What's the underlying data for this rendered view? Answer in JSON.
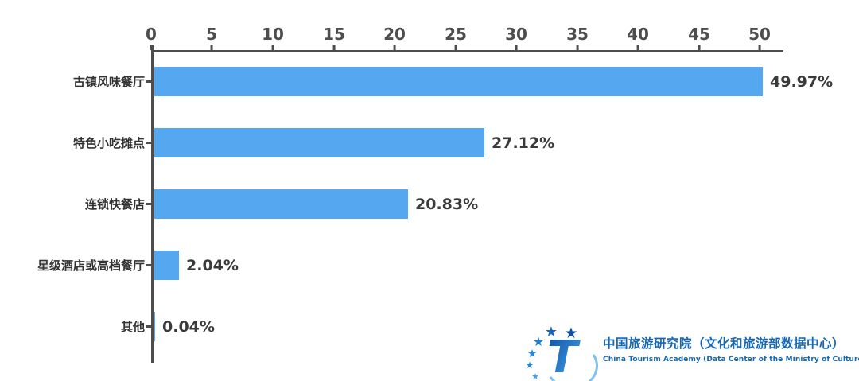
{
  "chart_data": {
    "type": "bar",
    "orientation": "horizontal",
    "title": "",
    "categories": [
      "古镇风味餐厅",
      "特色小吃摊点",
      "连锁快餐店",
      "星级酒店或高档餐厅",
      "其他"
    ],
    "values": [
      49.97,
      27.12,
      20.83,
      2.04,
      0.04
    ],
    "value_labels": [
      "49.97%",
      "27.12%",
      "20.83%",
      "2.04%",
      "0.04%"
    ],
    "x_ticks": [
      "0",
      "5",
      "10",
      "15",
      "20",
      "25",
      "30",
      "35",
      "40",
      "45",
      "50"
    ],
    "xlim": [
      0,
      50
    ],
    "grid": false,
    "legend": "none",
    "axis_position": "top",
    "bar_color": "#55a8f0",
    "axis_color": "#4d4d4d",
    "label_color": "#333333"
  },
  "branding": {
    "logo_icon": "china-tourism-academy-logo",
    "title_zh": "中国旅游研究院（文化和旅游部数据中心）",
    "title_en": "China Tourism Academy (Data Center of the Ministry of Culture and Tourism)",
    "brand_color": "#1766b2"
  }
}
